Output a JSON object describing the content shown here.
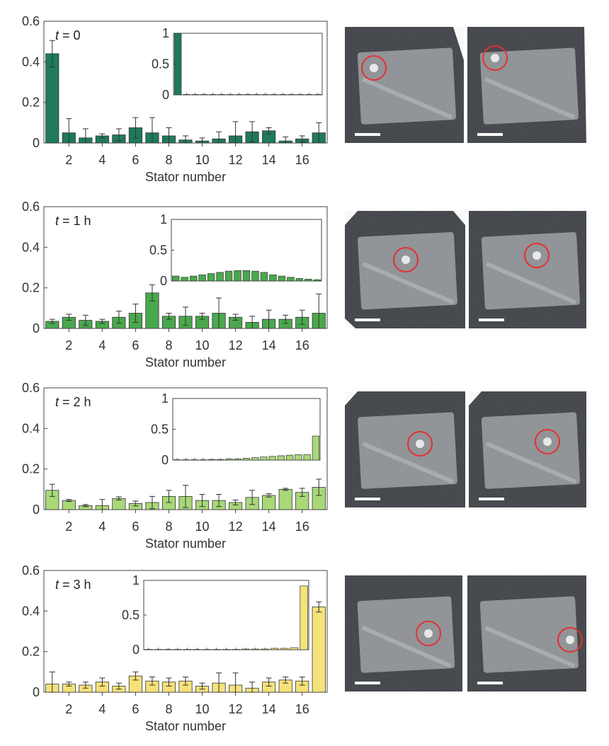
{
  "chart_data": [
    {
      "type": "bar",
      "time_label": {
        "var": "t",
        "rest": " = 0"
      },
      "xlabel": "Stator number",
      "ylabel": "",
      "ylim": [
        0,
        0.6
      ],
      "yticks": [
        "0",
        "0.2",
        "0.4",
        "0.6"
      ],
      "xticks": [
        "2",
        "4",
        "6",
        "8",
        "10",
        "12",
        "14",
        "16"
      ],
      "categories": [
        1,
        2,
        3,
        4,
        5,
        6,
        7,
        8,
        9,
        10,
        11,
        12,
        13,
        14,
        15,
        16,
        17
      ],
      "values": [
        0.44,
        0.05,
        0.025,
        0.035,
        0.04,
        0.075,
        0.05,
        0.035,
        0.015,
        0.01,
        0.02,
        0.035,
        0.055,
        0.06,
        0.01,
        0.02,
        0.05
      ],
      "errors": [
        0.065,
        0.07,
        0.045,
        0.01,
        0.03,
        0.05,
        0.075,
        0.04,
        0.02,
        0.015,
        0.035,
        0.07,
        0.05,
        0.015,
        0.02,
        0.015,
        0.05
      ],
      "color": "#1f7a5a",
      "inset": {
        "ylim": [
          0,
          1
        ],
        "yticks": [
          "0",
          "0.5",
          "1"
        ],
        "values": [
          1,
          0,
          0,
          0,
          0,
          0,
          0,
          0,
          0,
          0,
          0,
          0,
          0,
          0,
          0,
          0,
          0
        ]
      }
    },
    {
      "type": "bar",
      "time_label": {
        "var": "t",
        "rest": " = 1 h"
      },
      "xlabel": "Stator number",
      "ylabel": "",
      "ylim": [
        0,
        0.6
      ],
      "yticks": [
        "0",
        "0.2",
        "0.4",
        "0.6"
      ],
      "xticks": [
        "2",
        "4",
        "6",
        "8",
        "10",
        "12",
        "14",
        "16"
      ],
      "categories": [
        1,
        2,
        3,
        4,
        5,
        6,
        7,
        8,
        9,
        10,
        11,
        12,
        13,
        14,
        15,
        16,
        17
      ],
      "values": [
        0.035,
        0.055,
        0.04,
        0.035,
        0.055,
        0.075,
        0.175,
        0.06,
        0.06,
        0.06,
        0.075,
        0.055,
        0.03,
        0.045,
        0.045,
        0.055,
        0.075
      ],
      "errors": [
        0.01,
        0.015,
        0.025,
        0.01,
        0.03,
        0.045,
        0.04,
        0.015,
        0.045,
        0.015,
        0.075,
        0.015,
        0.03,
        0.045,
        0.02,
        0.035,
        0.095
      ],
      "color": "#4aa84c",
      "inset": {
        "ylim": [
          0,
          1
        ],
        "yticks": [
          "0",
          "0.5",
          "1"
        ],
        "values": [
          0.08,
          0.06,
          0.08,
          0.1,
          0.12,
          0.14,
          0.16,
          0.17,
          0.17,
          0.16,
          0.14,
          0.1,
          0.08,
          0.06,
          0.04,
          0.03,
          0.02
        ]
      }
    },
    {
      "type": "bar",
      "time_label": {
        "var": "t",
        "rest": " = 2 h"
      },
      "xlabel": "Stator number",
      "ylabel": "",
      "ylim": [
        0,
        0.6
      ],
      "yticks": [
        "0",
        "0.2",
        "0.4",
        "0.6"
      ],
      "xticks": [
        "2",
        "4",
        "6",
        "8",
        "10",
        "12",
        "14",
        "16"
      ],
      "categories": [
        1,
        2,
        3,
        4,
        5,
        6,
        7,
        8,
        9,
        10,
        11,
        12,
        13,
        14,
        15,
        16,
        17
      ],
      "values": [
        0.095,
        0.045,
        0.02,
        0.02,
        0.055,
        0.03,
        0.035,
        0.065,
        0.065,
        0.045,
        0.045,
        0.035,
        0.06,
        0.07,
        0.1,
        0.085,
        0.11
      ],
      "errors": [
        0.03,
        0.005,
        0.005,
        0.03,
        0.008,
        0.012,
        0.03,
        0.03,
        0.055,
        0.03,
        0.03,
        0.012,
        0.035,
        0.008,
        0.005,
        0.02,
        0.04
      ],
      "color": "#a8d878",
      "inset": {
        "ylim": [
          0,
          1
        ],
        "yticks": [
          "0",
          "0.5",
          "1"
        ],
        "values": [
          0,
          0,
          0,
          0,
          0.01,
          0.01,
          0.02,
          0.02,
          0.03,
          0.04,
          0.05,
          0.06,
          0.07,
          0.08,
          0.09,
          0.09,
          0.39
        ]
      }
    },
    {
      "type": "bar",
      "time_label": {
        "var": "t",
        "rest": " = 3 h"
      },
      "xlabel": "Stator number",
      "ylabel": "",
      "ylim": [
        0,
        0.6
      ],
      "yticks": [
        "0",
        "0.2",
        "0.4",
        "0.6"
      ],
      "xticks": [
        "2",
        "4",
        "6",
        "8",
        "10",
        "12",
        "14",
        "16"
      ],
      "categories": [
        1,
        2,
        3,
        4,
        5,
        6,
        7,
        8,
        9,
        10,
        11,
        12,
        13,
        14,
        15,
        16,
        17
      ],
      "values": [
        0.04,
        0.04,
        0.035,
        0.05,
        0.03,
        0.08,
        0.055,
        0.05,
        0.055,
        0.03,
        0.045,
        0.035,
        0.02,
        0.05,
        0.06,
        0.055,
        0.42
      ],
      "errors": [
        0.06,
        0.01,
        0.015,
        0.02,
        0.015,
        0.02,
        0.02,
        0.02,
        0.02,
        0.015,
        0.05,
        0.06,
        0.03,
        0.02,
        0.015,
        0.02,
        0.025
      ],
      "color": "#f5e27a",
      "inset": {
        "ylim": [
          0,
          1
        ],
        "yticks": [
          "0",
          "0.5",
          "1"
        ],
        "values": [
          0,
          0,
          0,
          0,
          0,
          0,
          0,
          0,
          0,
          0,
          0.01,
          0.01,
          0.01,
          0.02,
          0.02,
          0.03,
          0.92
        ]
      }
    }
  ],
  "images": {
    "marker_color": "#e53030"
  }
}
